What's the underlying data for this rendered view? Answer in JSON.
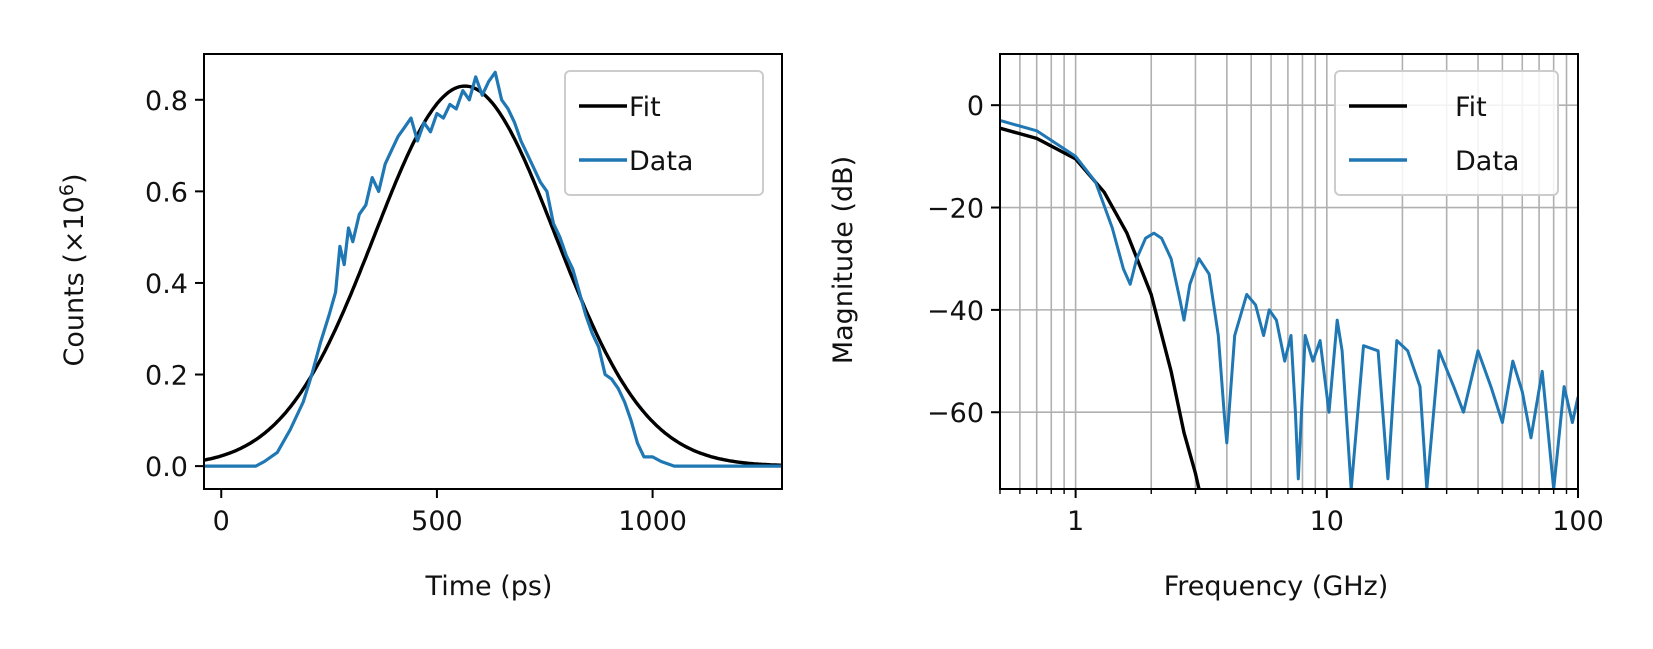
{
  "colors": {
    "fit": "#000000",
    "data": "#1f77b4",
    "grid": "#b0b0b0"
  },
  "chart_data": [
    {
      "type": "line",
      "xlabel": "Time (ps)",
      "ylabel_main": "Counts (×10",
      "ylabel_exp": "6",
      "ylabel_close": ")",
      "xlim": [
        -40,
        1300
      ],
      "ylim": [
        -0.05,
        0.9
      ],
      "xticks": [
        0,
        500,
        1000
      ],
      "xtick_labels": [
        "0",
        "500",
        "1000"
      ],
      "yticks": [
        0.0,
        0.2,
        0.4,
        0.6,
        0.8
      ],
      "ytick_labels": [
        "0.0",
        "0.2",
        "0.4",
        "0.6",
        "0.8"
      ],
      "grid": false,
      "legend": "top-right",
      "series": [
        {
          "name": "Fit",
          "gaussian": {
            "amplitude": 0.83,
            "center": 565,
            "sigma": 210,
            "baseline": 0.0
          }
        },
        {
          "name": "Data",
          "x": [
            -40,
            0,
            40,
            80,
            100,
            130,
            160,
            190,
            210,
            230,
            250,
            265,
            275,
            285,
            295,
            305,
            320,
            335,
            350,
            365,
            380,
            395,
            410,
            425,
            440,
            455,
            470,
            485,
            500,
            515,
            530,
            545,
            560,
            575,
            590,
            605,
            620,
            635,
            650,
            665,
            680,
            695,
            710,
            725,
            740,
            755,
            770,
            785,
            800,
            815,
            830,
            845,
            860,
            875,
            890,
            905,
            920,
            935,
            950,
            965,
            980,
            1000,
            1020,
            1050,
            1100,
            1150,
            1200,
            1300
          ],
          "y": [
            0.0,
            0.0,
            0.0,
            0.0,
            0.01,
            0.03,
            0.08,
            0.14,
            0.2,
            0.27,
            0.33,
            0.38,
            0.48,
            0.44,
            0.52,
            0.49,
            0.55,
            0.57,
            0.63,
            0.6,
            0.66,
            0.69,
            0.72,
            0.74,
            0.76,
            0.71,
            0.75,
            0.73,
            0.77,
            0.76,
            0.79,
            0.78,
            0.82,
            0.8,
            0.85,
            0.81,
            0.84,
            0.86,
            0.8,
            0.78,
            0.75,
            0.71,
            0.68,
            0.65,
            0.62,
            0.6,
            0.53,
            0.5,
            0.46,
            0.43,
            0.38,
            0.33,
            0.29,
            0.26,
            0.2,
            0.19,
            0.17,
            0.14,
            0.1,
            0.05,
            0.02,
            0.02,
            0.01,
            0.0,
            0.0,
            0.0,
            0.0,
            0.0
          ]
        }
      ]
    },
    {
      "type": "line",
      "xlabel": "Frequency (GHz)",
      "ylabel": "Magnitude (dB)",
      "xscale": "log",
      "xlim": [
        0.5,
        100
      ],
      "ylim": [
        -75,
        10
      ],
      "xticks": [
        1,
        10,
        100
      ],
      "xtick_labels": [
        "1",
        "10",
        "100"
      ],
      "yticks": [
        0,
        -20,
        -40,
        -60
      ],
      "ytick_labels": [
        "0",
        "−20",
        "−40",
        "−60"
      ],
      "grid": true,
      "legend": "top-right",
      "series": [
        {
          "name": "Fit",
          "x": [
            0.5,
            0.7,
            1.0,
            1.3,
            1.6,
            2.0,
            2.4,
            2.7,
            3.0,
            3.1
          ],
          "y": [
            -4.5,
            -6.5,
            -10.5,
            -17,
            -25,
            -37,
            -52,
            -64,
            -72,
            -75
          ]
        },
        {
          "name": "Data",
          "x": [
            0.5,
            0.7,
            1.0,
            1.2,
            1.4,
            1.55,
            1.65,
            1.75,
            1.9,
            2.05,
            2.2,
            2.4,
            2.6,
            2.7,
            2.85,
            3.1,
            3.4,
            3.7,
            3.9,
            4.0,
            4.3,
            4.8,
            5.2,
            5.6,
            5.9,
            6.3,
            6.8,
            7.2,
            7.5,
            7.7,
            8.2,
            8.8,
            9.4,
            10.2,
            11.0,
            11.5,
            12.5,
            14.0,
            16.0,
            17.5,
            19.0,
            21.0,
            23.5,
            25.0,
            28.0,
            32.0,
            35.0,
            40.0,
            45.0,
            50.0,
            55.0,
            60.0,
            65.0,
            72.0,
            80.0,
            88.0,
            95.0,
            100.0
          ],
          "y": [
            -3,
            -5,
            -10,
            -15,
            -24,
            -32,
            -35,
            -30,
            -26,
            -25,
            -26,
            -30,
            -38,
            -42,
            -35,
            -30,
            -33,
            -45,
            -60,
            -66,
            -45,
            -37,
            -39,
            -45,
            -40,
            -42,
            -50,
            -45,
            -60,
            -73,
            -45,
            -50,
            -46,
            -60,
            -42,
            -48,
            -75,
            -47,
            -48,
            -73,
            -46,
            -48,
            -55,
            -75,
            -48,
            -55,
            -60,
            -48,
            -55,
            -62,
            -50,
            -56,
            -65,
            -52,
            -75,
            -55,
            -62,
            -57
          ]
        }
      ]
    }
  ]
}
